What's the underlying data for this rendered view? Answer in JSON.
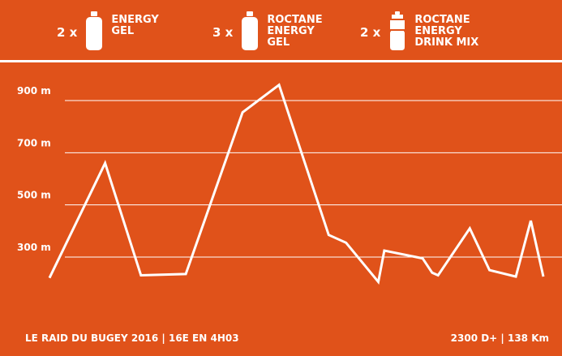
{
  "nutrition": [
    {
      "quantity": "2 x",
      "lines": [
        "ENERGY",
        "GEL"
      ],
      "icon": "gel-bottle-icon"
    },
    {
      "quantity": "3 x",
      "lines": [
        "ROCTANE",
        "ENERGY",
        "GEL"
      ],
      "icon": "gel-bottle-icon"
    },
    {
      "quantity": "2 x",
      "lines": [
        "ROCTANE",
        "ENERGY",
        "DRINK MIX"
      ],
      "icon": "drink-bottle-icon"
    }
  ],
  "footer": {
    "event": "LE RAID DU BUGEY 2016 | 16E EN 4H03",
    "stats": "2300 D+ | 138 Km"
  },
  "colors": {
    "background": "#e0521a",
    "foreground": "#ffffff"
  },
  "chart_data": {
    "type": "line",
    "title": "",
    "xlabel": "",
    "ylabel": "",
    "yticks": [
      300,
      500,
      700,
      900
    ],
    "ytick_labels": [
      "300 m",
      "500 m",
      "700 m",
      "900 m"
    ],
    "ylim": [
      180,
      960
    ],
    "grid": true,
    "series": [
      {
        "x": [
          0,
          9.3,
          15.3,
          22.8,
          32.3,
          38.4,
          46.7,
          49.6,
          55.0,
          56.0,
          62.4,
          64.0,
          65.0,
          70.3,
          73.6,
          78.0,
          80.5
        ],
        "values": [
          220,
          660,
          230,
          235,
          855,
          960,
          385,
          355,
          205,
          325,
          295,
          240,
          230,
          410,
          250,
          225,
          440
        ]
      },
      {
        "x": [
          80.5,
          82.6
        ],
        "values": [
          440,
          225
        ]
      }
    ]
  }
}
